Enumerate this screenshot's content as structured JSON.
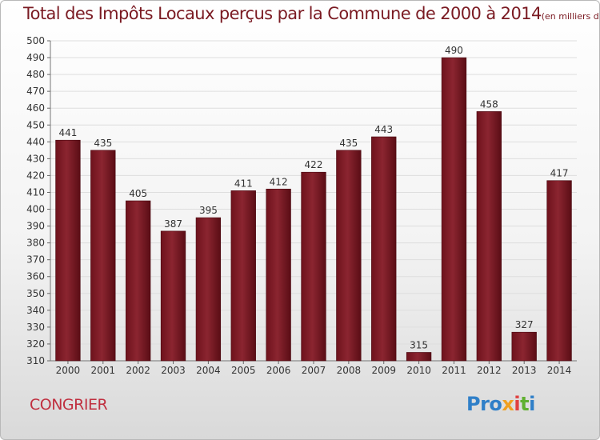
{
  "chart_data": {
    "type": "bar",
    "title": "Total des Impôts Locaux perçus par la Commune de 2000 à 2014",
    "subtitle": "(en milliers d'€)",
    "categories": [
      "2000",
      "2001",
      "2002",
      "2003",
      "2004",
      "2005",
      "2006",
      "2007",
      "2008",
      "2009",
      "2010",
      "2011",
      "2012",
      "2013",
      "2014"
    ],
    "values": [
      441,
      435,
      405,
      387,
      395,
      411,
      412,
      422,
      435,
      443,
      315,
      490,
      458,
      327,
      417
    ],
    "ylim": [
      310,
      500
    ],
    "ytick_step": 10,
    "xlabel": "",
    "ylabel": "",
    "grid": true,
    "bar_color": "#8b1f2a"
  },
  "commune": "CONGRIER",
  "logo": {
    "p1": "Pro",
    "p2": "x",
    "p3": "i",
    "p4": "t",
    "p5": "i"
  }
}
